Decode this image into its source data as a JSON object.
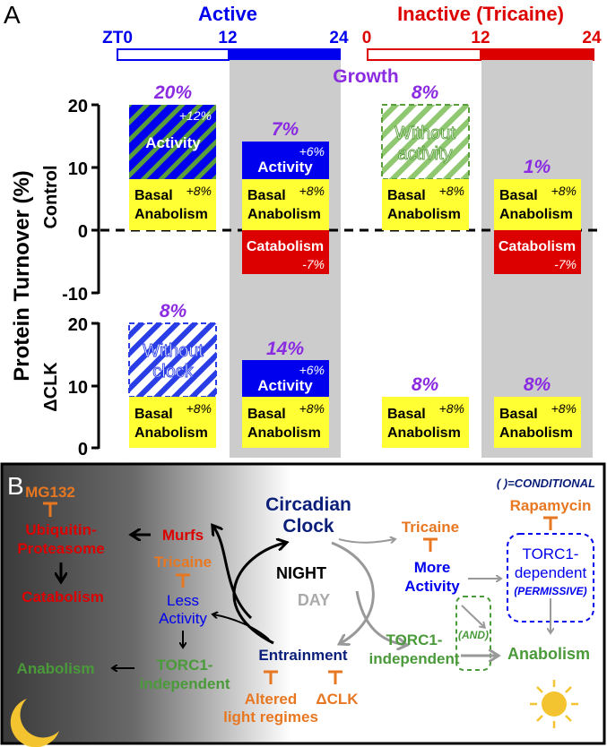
{
  "panel_a": {
    "letter": "A",
    "active_label": "Active",
    "inactive_label": "Inactive (Tricaine)",
    "zt0": "ZT0",
    "t12a": "12",
    "t24a": "24",
    "t0b": "0",
    "t12b": "12",
    "t24b": "24",
    "growth": "Growth",
    "ylabel": "Protein Turnover (%)",
    "control_label": "Control",
    "dclk_label": "ΔCLK",
    "ticks_control": [
      "20",
      "10",
      "0",
      "-10"
    ],
    "ticks_dclk": [
      "20",
      "10",
      "0"
    ],
    "bars": {
      "c1_pct": "20%",
      "c1_act": "Activity",
      "c1_act_val": "+12%",
      "c2_pct": "7%",
      "c2_act": "Activity",
      "c2_act_val": "+6%",
      "c3_pct": "8%",
      "c3_wa1": "Without",
      "c3_wa2": "activity",
      "c4_pct": "1%",
      "basal1": "Basal",
      "basal2": "Anabolism",
      "basal_val": "+8%",
      "catab": "Catabolism",
      "catab_val": "-7%",
      "d1_pct": "8%",
      "d1_wc1": "Without",
      "d1_wc2": "clock",
      "d2_pct": "14%",
      "d2_act": "Activity",
      "d2_act_val": "+6%",
      "d3_pct": "8%",
      "d4_pct": "8%"
    }
  },
  "panel_b": {
    "letter": "B",
    "conditional": "( )=CONDITIONAL",
    "mg132": "MG132",
    "ubiq1": "Ubiquitin-",
    "ubiq2": "Proteasome",
    "catabolism": "Catabolism",
    "murfs": "Murfs",
    "tricaine_left": "Tricaine",
    "less1": "Less",
    "less2": "Activity",
    "anabolism_left": "Anabolism",
    "torc_ind_left1": "TORC1-",
    "torc_ind_left2": "independent",
    "clock1": "Circadian",
    "clock2": "Clock",
    "night": "NIGHT",
    "day": "DAY",
    "entrainment": "Entrainment",
    "altered1": "Altered",
    "altered2": "light regimes",
    "dclk": "ΔCLK",
    "tricaine_right": "Tricaine",
    "more1": "More",
    "more2": "Activity",
    "torc_ind_right1": "TORC1-",
    "torc_ind_right2": "independent",
    "and": "(AND)",
    "rapamycin": "Rapamycin",
    "torc_dep1": "TORC1-",
    "torc_dep2": "dependent",
    "permissive": "(PERMISSIVE)",
    "anabolism_right": "Anabolism"
  },
  "colors": {
    "blue": "#0000ee",
    "red": "#dd0000",
    "purple": "#8a2be2",
    "yellow": "#ffff33",
    "green_stripe": "#5a9e3c",
    "orange": "#e87722",
    "navy": "#0a1e7a",
    "green_text": "#4a9a3a",
    "gray_band": "#cccccc"
  }
}
